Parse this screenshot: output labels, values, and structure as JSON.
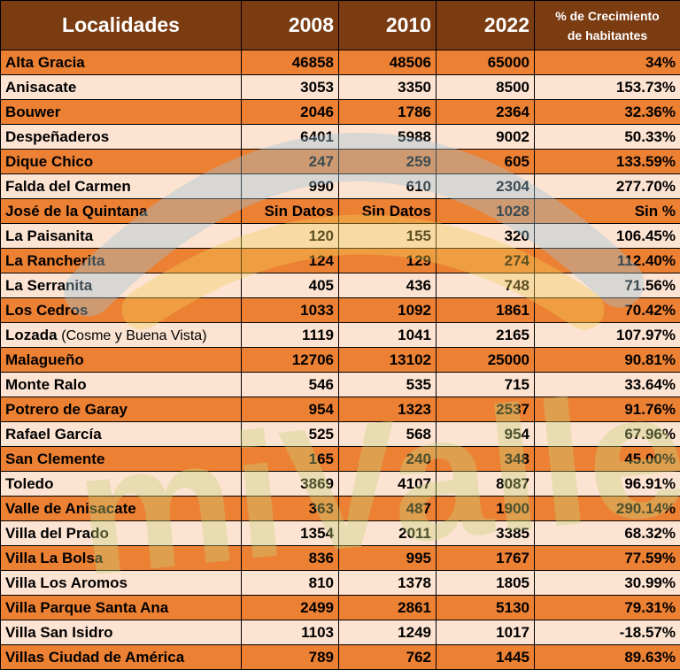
{
  "table": {
    "headers": {
      "localidades": "Localidades",
      "y2008": "2008",
      "y2010": "2010",
      "y2022": "2022",
      "growth_line1": "% de Crecimiento",
      "growth_line2": "de habitantes"
    },
    "rows": [
      {
        "name": "Alta Gracia",
        "y2008": "46858",
        "y2010": "48506",
        "y2022": "65000",
        "growth": "34%"
      },
      {
        "name": "Anisacate",
        "y2008": "3053",
        "y2010": "3350",
        "y2022": "8500",
        "growth": "153.73%"
      },
      {
        "name": "Bouwer",
        "y2008": "2046",
        "y2010": "1786",
        "y2022": "2364",
        "growth": "32.36%"
      },
      {
        "name": "Despeñaderos",
        "y2008": "6401",
        "y2010": "5988",
        "y2022": "9002",
        "growth": "50.33%"
      },
      {
        "name": "Dique Chico",
        "y2008": "247",
        "y2010": "259",
        "y2022": "605",
        "growth": "133.59%"
      },
      {
        "name": "Falda del Carmen",
        "y2008": "990",
        "y2010": "610",
        "y2022": "2304",
        "growth": "277.70%"
      },
      {
        "name": "José de la Quintana",
        "y2008": "Sin Datos",
        "y2010": "Sin Datos",
        "y2022": "1028",
        "growth": "Sin %"
      },
      {
        "name": "La Paisanita",
        "y2008": "120",
        "y2010": "155",
        "y2022": "320",
        "growth": "106.45%"
      },
      {
        "name": "La Rancherita",
        "y2008": "124",
        "y2010": "129",
        "y2022": "274",
        "growth": "112.40%"
      },
      {
        "name": "La Serranita",
        "y2008": "405",
        "y2010": "436",
        "y2022": "748",
        "growth": "71.56%"
      },
      {
        "name": "Los Cedros",
        "y2008": "1033",
        "y2010": "1092",
        "y2022": "1861",
        "growth": "70.42%"
      },
      {
        "name": "Lozada",
        "note": "(Cosme y Buena Vista)",
        "y2008": "1119",
        "y2010": "1041",
        "y2022": "2165",
        "growth": "107.97%"
      },
      {
        "name": "Malagueño",
        "y2008": "12706",
        "y2010": "13102",
        "y2022": "25000",
        "growth": "90.81%"
      },
      {
        "name": "Monte Ralo",
        "y2008": "546",
        "y2010": "535",
        "y2022": "715",
        "growth": "33.64%"
      },
      {
        "name": "Potrero de Garay",
        "y2008": "954",
        "y2010": "1323",
        "y2022": "2537",
        "growth": "91.76%"
      },
      {
        "name": "Rafael García",
        "y2008": "525",
        "y2010": "568",
        "y2022": "954",
        "growth": "67.96%"
      },
      {
        "name": "San Clemente",
        "y2008": "165",
        "y2010": "240",
        "y2022": "348",
        "growth": "45.00%"
      },
      {
        "name": "Toledo",
        "y2008": "3869",
        "y2010": "4107",
        "y2022": "8087",
        "growth": "96.91%"
      },
      {
        "name": "Valle de Anisacate",
        "y2008": "363",
        "y2010": "487",
        "y2022": "1900",
        "growth": "290.14%"
      },
      {
        "name": "Villa del Prado",
        "y2008": "1354",
        "y2010": "2011",
        "y2022": "3385",
        "growth": "68.32%"
      },
      {
        "name": "Villa La Bolsa",
        "y2008": "836",
        "y2010": "995",
        "y2022": "1767",
        "growth": "77.59%"
      },
      {
        "name": "Villa Los Aromos",
        "y2008": "810",
        "y2010": "1378",
        "y2022": "1805",
        "growth": "30.99%"
      },
      {
        "name": "Villa Parque Santa Ana",
        "y2008": "2499",
        "y2010": "2861",
        "y2022": "5130",
        "growth": "79.31%"
      },
      {
        "name": "Villa San Isidro",
        "y2008": "1103",
        "y2010": "1249",
        "y2022": "1017",
        "growth": "-18.57%"
      },
      {
        "name": "Villas Ciudad de América",
        "y2008": "789",
        "y2010": "762",
        "y2022": "1445",
        "growth": "89.63%"
      }
    ]
  },
  "colors": {
    "header_bg": "#7b3c12",
    "row_odd": "#ec8033",
    "row_even": "#fde3d2",
    "watermark_green": "#c8d27a",
    "watermark_blue": "#9fc6d8",
    "watermark_yellow": "#f2cf5a"
  },
  "watermark": {
    "text": "miValle"
  }
}
